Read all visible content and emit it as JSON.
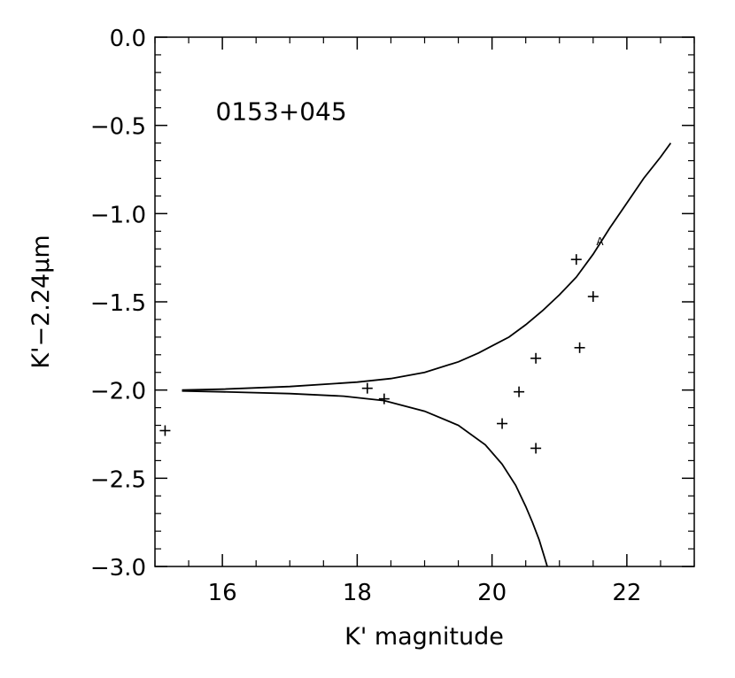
{
  "chart_data": {
    "type": "scatter",
    "xlabel": "K' magnitude",
    "ylabel": "K'−2.24μm",
    "xlim": [
      15,
      23
    ],
    "ylim": [
      -3.0,
      0.0
    ],
    "xticks": [
      16,
      18,
      20,
      22
    ],
    "xtick_labels": [
      "16",
      "18",
      "20",
      "22"
    ],
    "yticks": [
      0.0,
      -0.5,
      -1.0,
      -1.5,
      -2.0,
      -2.5,
      -3.0
    ],
    "ytick_labels": [
      "0.0",
      "−0.5",
      "−1.0",
      "−1.5",
      "−2.0",
      "−2.5",
      "−3.0"
    ],
    "grid": false,
    "legend": "none",
    "annotations": [
      {
        "text": "0153+045",
        "x": 15.9,
        "y": -0.42
      }
    ],
    "point_label": {
      "text": "A",
      "x": 21.6,
      "y": -1.18
    },
    "points": [
      {
        "x": 15.15,
        "y": -2.23
      },
      {
        "x": 18.15,
        "y": -1.99
      },
      {
        "x": 18.4,
        "y": -2.05
      },
      {
        "x": 20.15,
        "y": -2.19
      },
      {
        "x": 20.4,
        "y": -2.01
      },
      {
        "x": 20.65,
        "y": -1.82
      },
      {
        "x": 20.65,
        "y": -2.33
      },
      {
        "x": 21.25,
        "y": -1.26
      },
      {
        "x": 21.3,
        "y": -1.76
      },
      {
        "x": 21.5,
        "y": -1.47
      }
    ],
    "series": [
      {
        "values": [
          [
            15.4,
            -2.0
          ],
          [
            16.0,
            -1.995
          ],
          [
            17.0,
            -1.98
          ],
          [
            18.0,
            -1.955
          ],
          [
            18.5,
            -1.935
          ],
          [
            19.0,
            -1.9
          ],
          [
            19.5,
            -1.84
          ],
          [
            19.8,
            -1.79
          ],
          [
            20.0,
            -1.75
          ],
          [
            20.25,
            -1.7
          ],
          [
            20.5,
            -1.63
          ],
          [
            20.75,
            -1.55
          ],
          [
            21.0,
            -1.46
          ],
          [
            21.25,
            -1.36
          ],
          [
            21.5,
            -1.23
          ],
          [
            21.75,
            -1.08
          ],
          [
            22.0,
            -0.94
          ],
          [
            22.25,
            -0.8
          ],
          [
            22.5,
            -0.68
          ],
          [
            22.65,
            -0.6
          ]
        ]
      },
      {
        "values": [
          [
            15.4,
            -2.005
          ],
          [
            16.0,
            -2.01
          ],
          [
            17.0,
            -2.02
          ],
          [
            17.8,
            -2.035
          ],
          [
            18.4,
            -2.06
          ],
          [
            19.0,
            -2.12
          ],
          [
            19.5,
            -2.2
          ],
          [
            19.9,
            -2.31
          ],
          [
            20.15,
            -2.42
          ],
          [
            20.35,
            -2.54
          ],
          [
            20.5,
            -2.66
          ],
          [
            20.6,
            -2.75
          ],
          [
            20.7,
            -2.85
          ],
          [
            20.78,
            -2.95
          ],
          [
            20.82,
            -3.0
          ]
        ]
      }
    ]
  }
}
